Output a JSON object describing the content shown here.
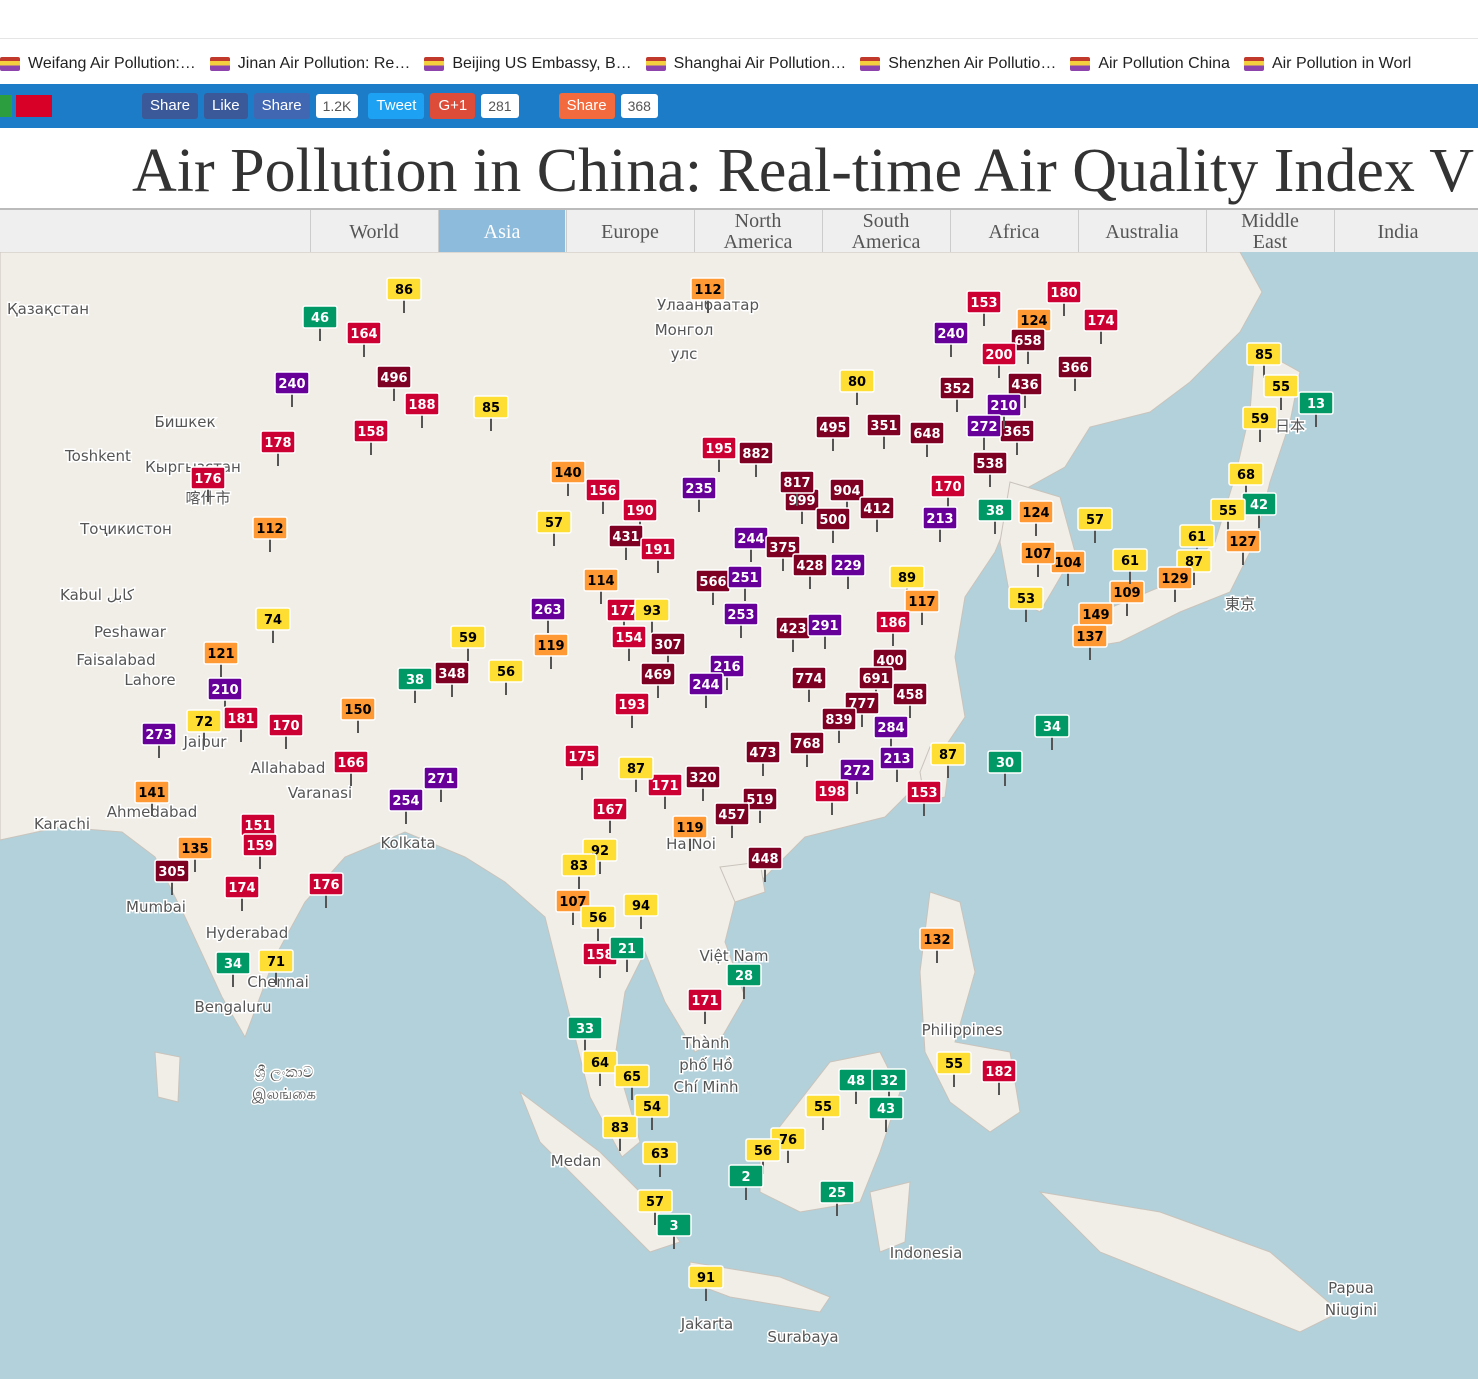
{
  "bookmarks": [
    "Weifang Air Pollution:…",
    "Jinan Air Pollution: Re…",
    "Beijing US Embassy, B…",
    "Shanghai Air Pollution…",
    "Shenzhen Air Pollutio…",
    "Air Pollution China",
    "Air Pollution in Worl"
  ],
  "share_bar": [
    "Share",
    "Like",
    "Share",
    "1.2K",
    "Tweet",
    "G+1",
    "281",
    "Share",
    "368"
  ],
  "title": "Air Pollution in China: Real-time Air Quality Index V",
  "tabs": [
    "World",
    "Asia",
    "Europe",
    "North America",
    "South America",
    "Africa",
    "Australia",
    "Middle East",
    "India"
  ],
  "active_tab": 1,
  "map": {
    "labels": [
      "Қазақстан",
      "Бишкек",
      "Toshkent",
      "Кыргызстан",
      "Тоҷикистон",
      "Kabul کابل",
      "Peshawar",
      "Faisalabad",
      "Lahore",
      "Karachi",
      "Ahmedabad",
      "Mumbai",
      "Hyderabad",
      "Chennai",
      "Bengaluru",
      "Jaipur",
      "Allahabad",
      "Varanasi",
      "Kolkata",
      "Улаанбаатар",
      "Монгол",
      "улс",
      "Ha Noi",
      "Việt Nam",
      "Thành",
      "phố Hồ",
      "Chí Minh",
      "Philippines",
      "Medan",
      "Indonesia",
      "Jakarta",
      "Surabaya",
      "Papua",
      "Niugini",
      "東京",
      "日本",
      "喀什市",
      "ශ්‍රී ලංකාව",
      "இலங்கை"
    ],
    "stations": [
      86,
      46,
      164,
      240,
      496,
      188,
      85,
      158,
      178,
      176,
      112,
      74,
      121,
      210,
      59,
      119,
      56,
      38,
      348,
      72,
      181,
      170,
      150,
      273,
      166,
      271,
      254,
      141,
      151,
      135,
      159,
      305,
      174,
      176,
      34,
      71,
      112,
      80,
      140,
      57,
      156,
      190,
      235,
      195,
      431,
      191,
      114,
      263,
      177,
      93,
      154,
      307,
      469,
      216,
      244,
      193,
      882,
      495,
      351,
      648,
      365,
      538,
      170,
      213,
      904,
      999,
      817,
      500,
      412,
      244,
      375,
      428,
      229,
      566,
      251,
      89,
      117,
      253,
      423,
      291,
      186,
      400,
      691,
      774,
      458,
      777,
      839,
      284,
      768,
      473,
      272,
      213,
      87,
      153,
      320,
      171,
      519,
      198,
      457,
      167,
      119,
      448,
      175,
      87,
      153,
      180,
      174,
      124,
      658,
      240,
      200,
      366,
      352,
      436,
      210,
      272,
      85,
      55,
      13,
      59,
      68,
      42,
      55,
      61,
      127,
      87,
      129,
      109,
      149,
      137,
      61,
      124,
      57,
      38,
      104,
      107,
      53,
      34,
      30,
      92,
      83,
      107,
      94,
      56,
      158,
      21,
      28,
      171,
      33,
      64,
      65,
      54,
      83,
      63,
      57,
      3,
      91,
      132,
      55,
      182,
      48,
      32,
      43,
      55,
      76,
      56,
      2,
      25
    ]
  }
}
